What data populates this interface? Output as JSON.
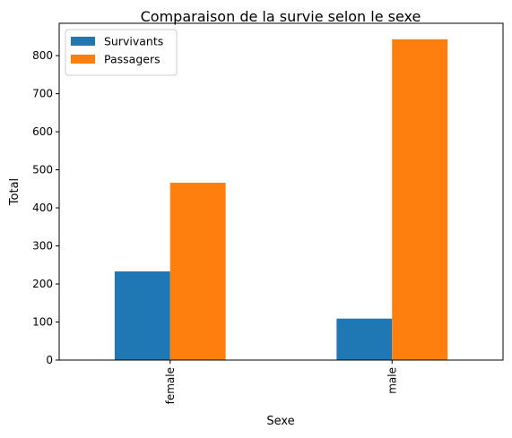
{
  "chart_data": {
    "type": "bar",
    "title": "Comparaison de la survie selon le sexe",
    "xlabel": "Sexe",
    "ylabel": "Total",
    "categories": [
      "female",
      "male"
    ],
    "series": [
      {
        "name": "Survivants",
        "values": [
          233,
          109
        ],
        "color": "#1f77b4"
      },
      {
        "name": "Passagers",
        "values": [
          466,
          843
        ],
        "color": "#ff7f0e"
      }
    ],
    "ylim": [
      0,
      885
    ],
    "yticks": [
      0,
      100,
      200,
      300,
      400,
      500,
      600,
      700,
      800
    ],
    "grid": false,
    "legend_position": "top-left"
  }
}
